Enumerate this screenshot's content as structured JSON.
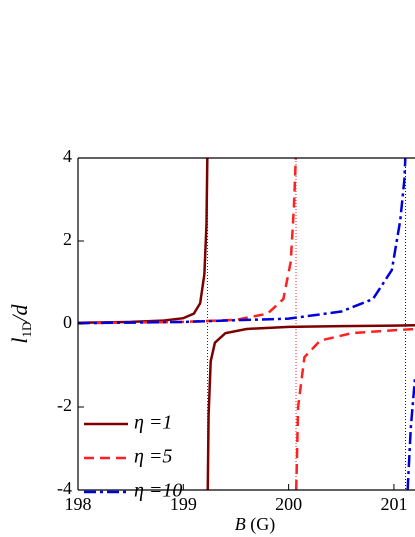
{
  "chart_data": {
    "type": "line",
    "xlabel": {
      "symbol": "B",
      "unit": "(G)"
    },
    "ylabel": {
      "main": "l",
      "sub": "1D",
      "rest": "/d"
    },
    "xlim": [
      198,
      201.2
    ],
    "ylim": [
      -4,
      4
    ],
    "xticks": [
      198,
      199,
      200,
      201
    ],
    "yticks": [
      -4,
      -2,
      0,
      2,
      4
    ],
    "legend": "lower left",
    "vlines": [
      199.23,
      200.07,
      201.11
    ],
    "series": [
      {
        "name": "η =1",
        "color": "#7b0000",
        "dash": "solid",
        "x": [
          198,
          198.5,
          198.8,
          199.0,
          199.1,
          199.16,
          199.2,
          199.22,
          199.228,
          null,
          199.232,
          199.24,
          199.26,
          199.3,
          199.4,
          199.6,
          200,
          200.5,
          201,
          201.2
        ],
        "values": [
          0.03,
          0.05,
          0.08,
          0.14,
          0.25,
          0.5,
          1.2,
          2.4,
          4,
          null,
          -4,
          -2.2,
          -0.9,
          -0.45,
          -0.22,
          -0.12,
          -0.07,
          -0.05,
          -0.04,
          -0.03
        ]
      },
      {
        "name": "η =5",
        "color": "#ff2020",
        "dash": "dashed",
        "x": [
          198,
          199,
          199.5,
          199.8,
          199.95,
          200.02,
          200.05,
          200.068,
          null,
          200.072,
          200.09,
          200.15,
          200.3,
          200.6,
          201,
          201.2
        ],
        "values": [
          0.02,
          0.05,
          0.1,
          0.25,
          0.6,
          1.5,
          2.8,
          4,
          null,
          -4,
          -2,
          -0.8,
          -0.4,
          -0.22,
          -0.15,
          -0.12
        ]
      },
      {
        "name": "η =10",
        "color": "#0000dd",
        "dash": "dashdot",
        "x": [
          198,
          199,
          200,
          200.5,
          200.8,
          200.98,
          201.06,
          201.1,
          201.108,
          null,
          201.13,
          201.16,
          201.2
        ],
        "values": [
          0.02,
          0.05,
          0.13,
          0.3,
          0.6,
          1.3,
          2.5,
          3.5,
          4,
          null,
          -4,
          -2.5,
          -1.3
        ]
      }
    ]
  }
}
